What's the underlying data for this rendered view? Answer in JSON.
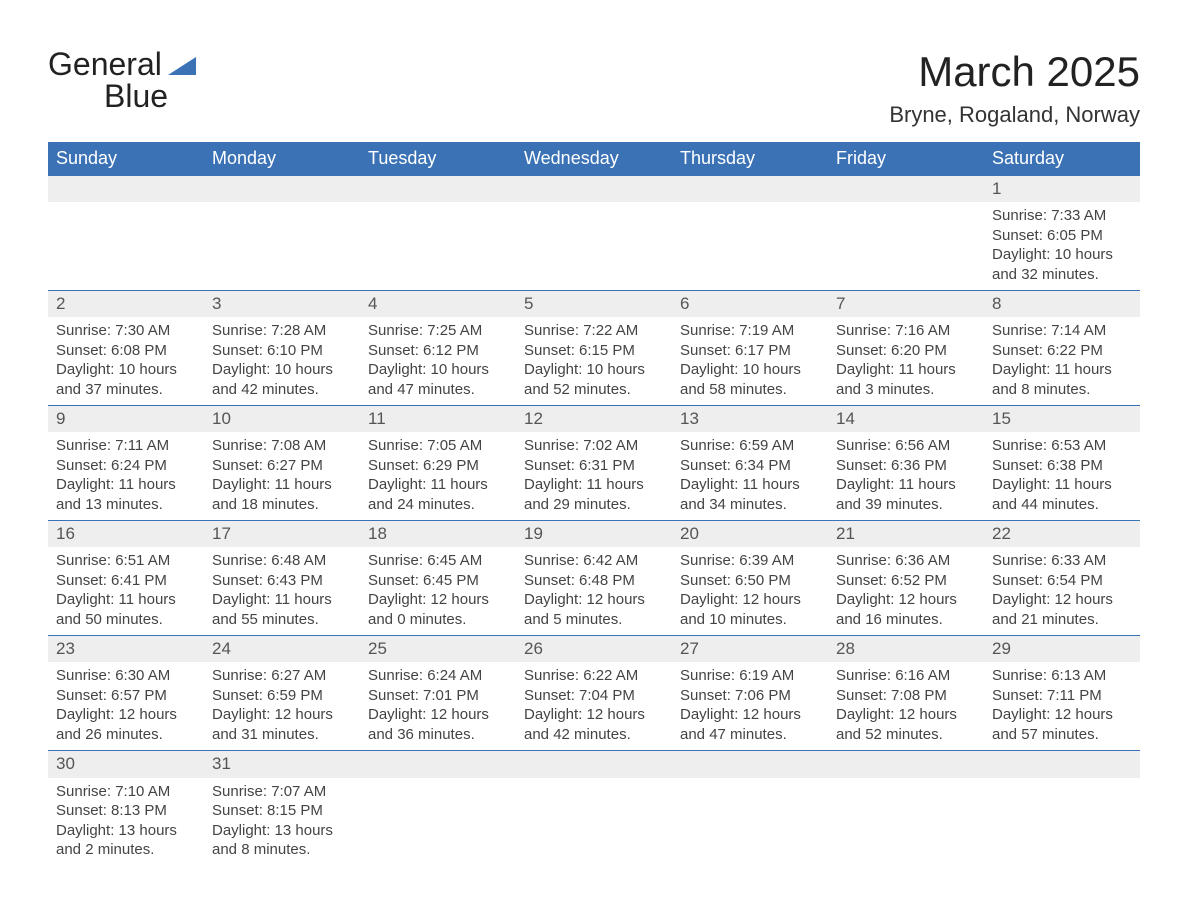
{
  "logo": {
    "word1": "General",
    "word2": "Blue",
    "mark_color": "#3a72b5",
    "text_color": "#222222"
  },
  "header": {
    "title": "March 2025",
    "subtitle": "Bryne, Rogaland, Norway",
    "title_fontsize": 42,
    "subtitle_fontsize": 22
  },
  "calendar": {
    "header_bg": "#3a72b5",
    "header_fg": "#ffffff",
    "daynum_bg": "#eeeeee",
    "row_border": "#3a72b5",
    "text_color": "#444444",
    "font_size_cell": 15,
    "columns": [
      "Sunday",
      "Monday",
      "Tuesday",
      "Wednesday",
      "Thursday",
      "Friday",
      "Saturday"
    ],
    "first_weekday_index": 6,
    "days": [
      {
        "n": 1,
        "sunrise": "7:33 AM",
        "sunset": "6:05 PM",
        "daylight": "10 hours and 32 minutes."
      },
      {
        "n": 2,
        "sunrise": "7:30 AM",
        "sunset": "6:08 PM",
        "daylight": "10 hours and 37 minutes."
      },
      {
        "n": 3,
        "sunrise": "7:28 AM",
        "sunset": "6:10 PM",
        "daylight": "10 hours and 42 minutes."
      },
      {
        "n": 4,
        "sunrise": "7:25 AM",
        "sunset": "6:12 PM",
        "daylight": "10 hours and 47 minutes."
      },
      {
        "n": 5,
        "sunrise": "7:22 AM",
        "sunset": "6:15 PM",
        "daylight": "10 hours and 52 minutes."
      },
      {
        "n": 6,
        "sunrise": "7:19 AM",
        "sunset": "6:17 PM",
        "daylight": "10 hours and 58 minutes."
      },
      {
        "n": 7,
        "sunrise": "7:16 AM",
        "sunset": "6:20 PM",
        "daylight": "11 hours and 3 minutes."
      },
      {
        "n": 8,
        "sunrise": "7:14 AM",
        "sunset": "6:22 PM",
        "daylight": "11 hours and 8 minutes."
      },
      {
        "n": 9,
        "sunrise": "7:11 AM",
        "sunset": "6:24 PM",
        "daylight": "11 hours and 13 minutes."
      },
      {
        "n": 10,
        "sunrise": "7:08 AM",
        "sunset": "6:27 PM",
        "daylight": "11 hours and 18 minutes."
      },
      {
        "n": 11,
        "sunrise": "7:05 AM",
        "sunset": "6:29 PM",
        "daylight": "11 hours and 24 minutes."
      },
      {
        "n": 12,
        "sunrise": "7:02 AM",
        "sunset": "6:31 PM",
        "daylight": "11 hours and 29 minutes."
      },
      {
        "n": 13,
        "sunrise": "6:59 AM",
        "sunset": "6:34 PM",
        "daylight": "11 hours and 34 minutes."
      },
      {
        "n": 14,
        "sunrise": "6:56 AM",
        "sunset": "6:36 PM",
        "daylight": "11 hours and 39 minutes."
      },
      {
        "n": 15,
        "sunrise": "6:53 AM",
        "sunset": "6:38 PM",
        "daylight": "11 hours and 44 minutes."
      },
      {
        "n": 16,
        "sunrise": "6:51 AM",
        "sunset": "6:41 PM",
        "daylight": "11 hours and 50 minutes."
      },
      {
        "n": 17,
        "sunrise": "6:48 AM",
        "sunset": "6:43 PM",
        "daylight": "11 hours and 55 minutes."
      },
      {
        "n": 18,
        "sunrise": "6:45 AM",
        "sunset": "6:45 PM",
        "daylight": "12 hours and 0 minutes."
      },
      {
        "n": 19,
        "sunrise": "6:42 AM",
        "sunset": "6:48 PM",
        "daylight": "12 hours and 5 minutes."
      },
      {
        "n": 20,
        "sunrise": "6:39 AM",
        "sunset": "6:50 PM",
        "daylight": "12 hours and 10 minutes."
      },
      {
        "n": 21,
        "sunrise": "6:36 AM",
        "sunset": "6:52 PM",
        "daylight": "12 hours and 16 minutes."
      },
      {
        "n": 22,
        "sunrise": "6:33 AM",
        "sunset": "6:54 PM",
        "daylight": "12 hours and 21 minutes."
      },
      {
        "n": 23,
        "sunrise": "6:30 AM",
        "sunset": "6:57 PM",
        "daylight": "12 hours and 26 minutes."
      },
      {
        "n": 24,
        "sunrise": "6:27 AM",
        "sunset": "6:59 PM",
        "daylight": "12 hours and 31 minutes."
      },
      {
        "n": 25,
        "sunrise": "6:24 AM",
        "sunset": "7:01 PM",
        "daylight": "12 hours and 36 minutes."
      },
      {
        "n": 26,
        "sunrise": "6:22 AM",
        "sunset": "7:04 PM",
        "daylight": "12 hours and 42 minutes."
      },
      {
        "n": 27,
        "sunrise": "6:19 AM",
        "sunset": "7:06 PM",
        "daylight": "12 hours and 47 minutes."
      },
      {
        "n": 28,
        "sunrise": "6:16 AM",
        "sunset": "7:08 PM",
        "daylight": "12 hours and 52 minutes."
      },
      {
        "n": 29,
        "sunrise": "6:13 AM",
        "sunset": "7:11 PM",
        "daylight": "12 hours and 57 minutes."
      },
      {
        "n": 30,
        "sunrise": "7:10 AM",
        "sunset": "8:13 PM",
        "daylight": "13 hours and 2 minutes."
      },
      {
        "n": 31,
        "sunrise": "7:07 AM",
        "sunset": "8:15 PM",
        "daylight": "13 hours and 8 minutes."
      }
    ],
    "labels": {
      "sunrise": "Sunrise:",
      "sunset": "Sunset:",
      "daylight": "Daylight:"
    }
  }
}
